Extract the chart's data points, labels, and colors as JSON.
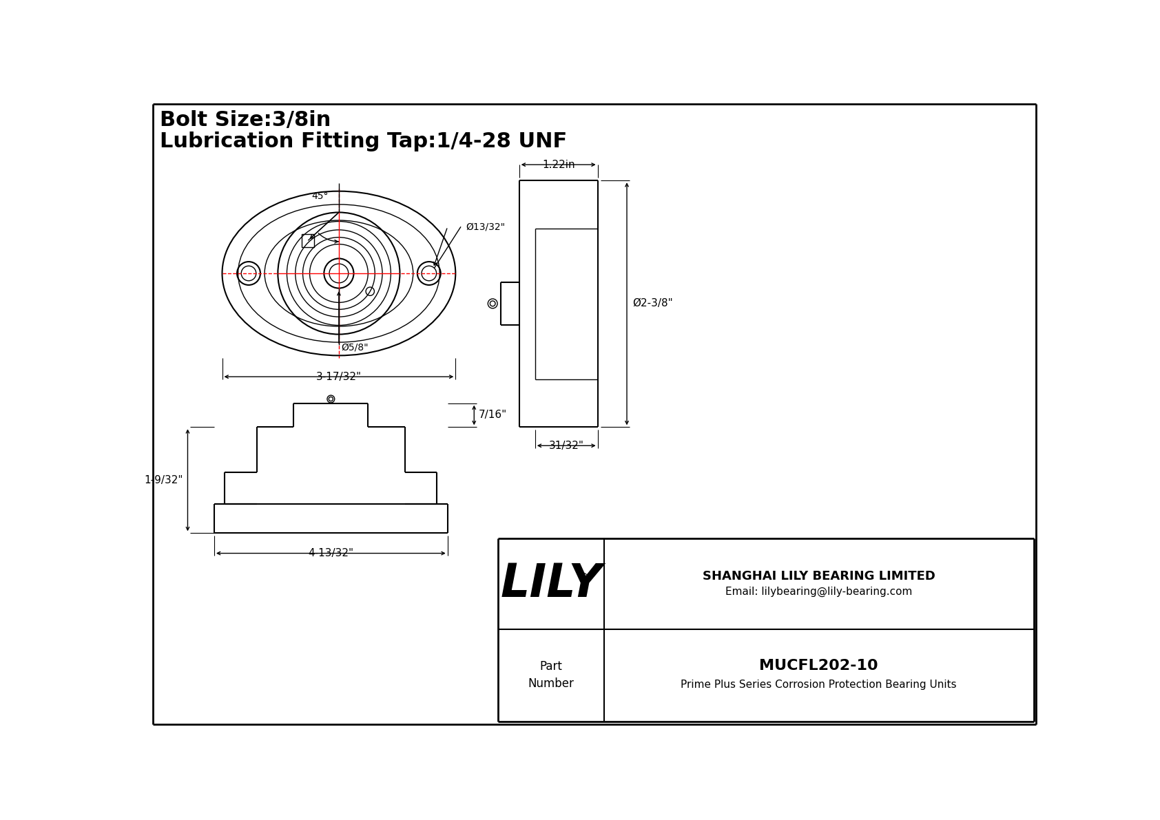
{
  "title_line1": "Bolt Size:3/8in",
  "title_line2": "Lubrication Fitting Tap:1/4-28 UNF",
  "bg_color": "#ffffff",
  "part_number": "MUCFL202-10",
  "part_desc": "Prime Plus Series Corrosion Protection Bearing Units",
  "company": "SHANGHAI LILY BEARING LIMITED",
  "email": "Email: lilybearing@lily-bearing.com",
  "dim_45": "45°",
  "dim_bore": "Ø13/32\"",
  "dim_shaft": "Ø5/8\"",
  "dim_width": "3-17/32\"",
  "dim_side_w": "1.22in",
  "dim_side_h": "Ø2-3/8\"",
  "dim_side_b": "31/32\"",
  "dim_front_h": "1-9/32\"",
  "dim_front_w": "4-13/32\"",
  "dim_step_h": "7/16\""
}
